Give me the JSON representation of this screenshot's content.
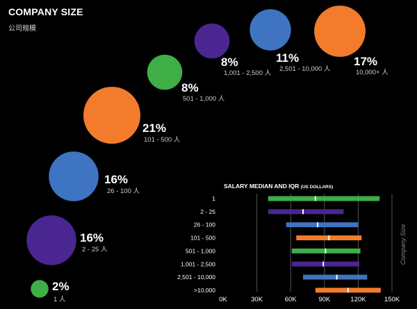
{
  "header": {
    "title": "COMPANY SIZE",
    "subtitle": "公司规模"
  },
  "colors": {
    "orange": "#f37b2c",
    "blue": "#3e74c1",
    "green": "#3fae47",
    "purple": "#4a2691"
  },
  "chart_data": [
    {
      "type": "bubble",
      "items": [
        {
          "label": "1 人",
          "percent_text": "2%",
          "value": 2,
          "color": "green"
        },
        {
          "label": "2 - 25 人",
          "percent_text": "16%",
          "value": 16,
          "color": "purple"
        },
        {
          "label": "26 - 100 人",
          "percent_text": "16%",
          "value": 16,
          "color": "blue"
        },
        {
          "label": "101 - 500 人",
          "percent_text": "21%",
          "value": 21,
          "color": "orange"
        },
        {
          "label": "501 - 1,000 人",
          "percent_text": "8%",
          "value": 8,
          "color": "green"
        },
        {
          "label": "1,001 - 2,500 人",
          "percent_text": "8%",
          "value": 8,
          "color": "purple"
        },
        {
          "label": "2,501 - 10,000 人",
          "percent_text": "11%",
          "value": 11,
          "color": "blue"
        },
        {
          "label": "10,000+ 人",
          "percent_text": "17%",
          "value": 17,
          "color": "orange"
        }
      ]
    },
    {
      "type": "range_bar",
      "title": "SALARY MEDIAN AND IQR",
      "title_suffix": "(US DOLLARS)",
      "ylabel": "Company Size",
      "xlim": [
        0,
        150000
      ],
      "xticks": [
        0,
        30000,
        60000,
        90000,
        120000,
        150000
      ],
      "xtick_labels": [
        "0K",
        "30K",
        "60K",
        "90K",
        "120K",
        "150K"
      ],
      "rows": [
        {
          "category": "1",
          "q1": 40000,
          "median": 82000,
          "q3": 139000,
          "color": "green"
        },
        {
          "category": "2 - 25",
          "q1": 40000,
          "median": 71000,
          "q3": 107000,
          "color": "purple"
        },
        {
          "category": "26 - 100",
          "q1": 56000,
          "median": 84000,
          "q3": 120000,
          "color": "blue"
        },
        {
          "category": "101 - 500",
          "q1": 65000,
          "median": 94000,
          "q3": 123000,
          "color": "orange"
        },
        {
          "category": "501 - 1,000",
          "q1": 61000,
          "median": 91000,
          "q3": 122000,
          "color": "green"
        },
        {
          "category": "1,001 - 2,500",
          "q1": 61000,
          "median": 89000,
          "q3": 121000,
          "color": "purple"
        },
        {
          "category": "2,501 - 10,000",
          "q1": 71000,
          "median": 101000,
          "q3": 128000,
          "color": "blue"
        },
        {
          "category": ">10,000",
          "q1": 82000,
          "median": 111000,
          "q3": 140000,
          "color": "orange"
        }
      ]
    }
  ]
}
